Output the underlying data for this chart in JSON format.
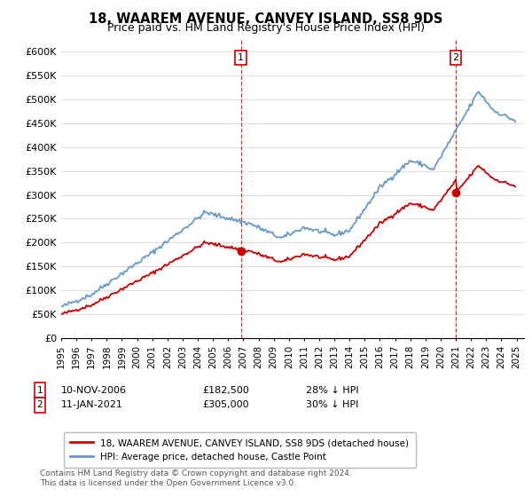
{
  "title": "18, WAAREM AVENUE, CANVEY ISLAND, SS8 9DS",
  "subtitle": "Price paid vs. HM Land Registry's House Price Index (HPI)",
  "title_fontsize": 10.5,
  "subtitle_fontsize": 9,
  "ylabel_ticks": [
    "£0",
    "£50K",
    "£100K",
    "£150K",
    "£200K",
    "£250K",
    "£300K",
    "£350K",
    "£400K",
    "£450K",
    "£500K",
    "£550K",
    "£600K"
  ],
  "ytick_values": [
    0,
    50000,
    100000,
    150000,
    200000,
    250000,
    300000,
    350000,
    400000,
    450000,
    500000,
    550000,
    600000
  ],
  "ylim": [
    0,
    625000
  ],
  "background_color": "#ffffff",
  "grid_color": "#dddddd",
  "hpi_color": "#6699cc",
  "price_color": "#cc0000",
  "sale1_price": 182500,
  "sale2_price": 305000,
  "legend_label_price": "18, WAAREM AVENUE, CANVEY ISLAND, SS8 9DS (detached house)",
  "legend_label_hpi": "HPI: Average price, detached house, Castle Point",
  "footer_text": "Contains HM Land Registry data © Crown copyright and database right 2024.\nThis data is licensed under the Open Government Licence v3.0.",
  "xstart_year": 1995,
  "xend_year": 2025,
  "sale1_vline_year": 2006.85,
  "sale2_vline_year": 2021.03
}
